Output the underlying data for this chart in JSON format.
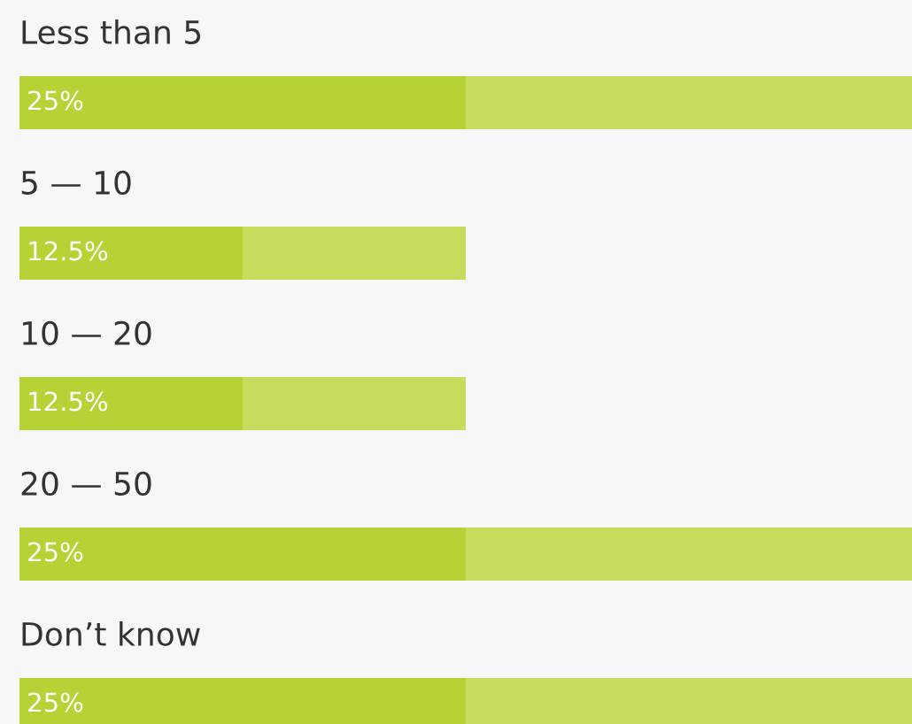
{
  "chart_data": {
    "type": "bar",
    "orientation": "horizontal",
    "stacked": true,
    "categories": [
      "Less than 5",
      "5 — 10",
      "10 — 20",
      "20 — 50",
      "Don’t know"
    ],
    "xlim": [
      0,
      50
    ],
    "series": [
      {
        "color": "#b5d334",
        "values": [
          25,
          12.5,
          12.5,
          25,
          25
        ],
        "value_labels": [
          "25%",
          "12.5%",
          "12.5%",
          "25%",
          "25%"
        ]
      },
      {
        "color": "#c5dc5c",
        "values": [
          25,
          12.5,
          12.5,
          25,
          25
        ]
      }
    ]
  }
}
